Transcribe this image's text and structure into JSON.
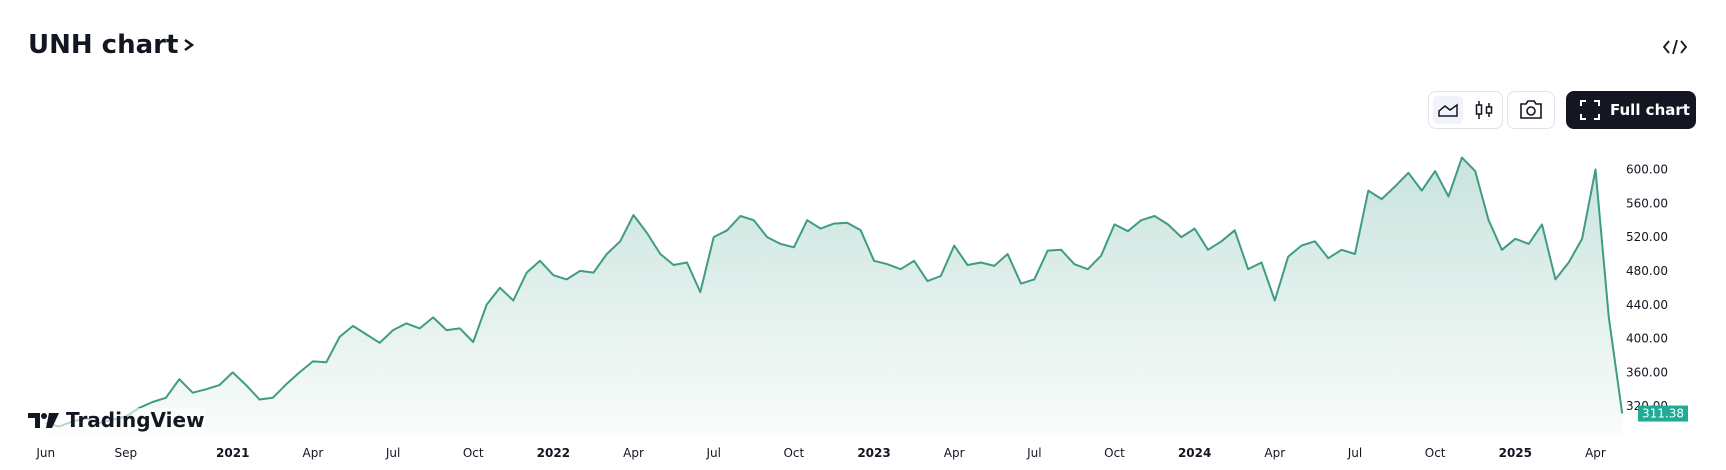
{
  "header": {
    "title": "UNH chart",
    "full_chart": "Full chart"
  },
  "logo": "TradingView",
  "chart_data": {
    "type": "area",
    "line_color": "#3f9c84",
    "fill_color": "#3f9c84",
    "tag_color": "#22ab94",
    "categories": [
      "Jun",
      null,
      null,
      null,
      null,
      null,
      "Sep",
      null,
      null,
      null,
      null,
      null,
      null,
      null,
      "2021",
      null,
      null,
      null,
      null,
      null,
      "Apr",
      null,
      null,
      null,
      null,
      null,
      "Jul",
      null,
      null,
      null,
      null,
      null,
      "Oct",
      null,
      null,
      null,
      null,
      null,
      "2022",
      null,
      null,
      null,
      null,
      null,
      "Apr",
      null,
      null,
      null,
      null,
      null,
      "Jul",
      null,
      null,
      null,
      null,
      null,
      "Oct",
      null,
      null,
      null,
      null,
      null,
      "2023",
      null,
      null,
      null,
      null,
      null,
      "Apr",
      null,
      null,
      null,
      null,
      null,
      "Jul",
      null,
      null,
      null,
      null,
      null,
      "Oct",
      null,
      null,
      null,
      null,
      null,
      "2024",
      null,
      null,
      null,
      null,
      null,
      "Apr",
      null,
      null,
      null,
      null,
      null,
      "Jul",
      null,
      null,
      null,
      null,
      null,
      "Oct",
      null,
      null,
      null,
      null,
      null,
      "2025",
      null,
      null,
      null,
      null,
      null,
      "Apr",
      null,
      null
    ],
    "values": [
      300,
      296,
      302,
      306,
      300,
      304,
      308,
      318,
      325,
      330,
      352,
      336,
      340,
      345,
      360,
      345,
      328,
      330,
      346,
      360,
      373,
      372,
      402,
      415,
      405,
      395,
      410,
      418,
      412,
      425,
      410,
      412,
      396,
      440,
      460,
      445,
      478,
      492,
      475,
      470,
      480,
      478,
      500,
      515,
      546,
      525,
      500,
      487,
      490,
      455,
      520,
      528,
      545,
      540,
      520,
      512,
      508,
      540,
      530,
      536,
      537,
      528,
      492,
      488,
      482,
      492,
      468,
      474,
      510,
      487,
      490,
      486,
      500,
      465,
      470,
      504,
      505,
      488,
      482,
      498,
      535,
      527,
      540,
      545,
      535,
      520,
      530,
      505,
      515,
      528,
      482,
      490,
      445,
      497,
      510,
      515,
      495,
      505,
      500,
      575,
      565,
      580,
      596,
      575,
      598,
      568,
      614,
      598,
      540,
      505,
      518,
      512,
      535,
      470,
      490,
      518,
      600,
      425,
      311.38
    ],
    "ylim": [
      286,
      623
    ],
    "yticks": [
      {
        "value": 320,
        "label": "320.00"
      },
      {
        "value": 360,
        "label": "360.00"
      },
      {
        "value": 400,
        "label": "400.00"
      },
      {
        "value": 440,
        "label": "440.00"
      },
      {
        "value": 480,
        "label": "480.00"
      },
      {
        "value": 520,
        "label": "520.00"
      },
      {
        "value": 560,
        "label": "560.00"
      },
      {
        "value": 600,
        "label": "600.00"
      }
    ],
    "grid": false
  }
}
